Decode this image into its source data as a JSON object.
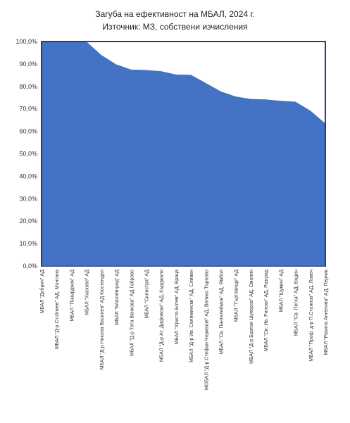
{
  "chart_data": {
    "type": "area",
    "title": "Загуба на ефективност на МБАЛ, 2024 г.",
    "subtitle": "Източник: МЗ, собствени изчисления",
    "ylim": [
      0,
      100
    ],
    "y_ticks": [
      "0,0%",
      "10,0%",
      "20,0%",
      "30,0%",
      "40,0%",
      "50,0%",
      "60,0%",
      "70,0%",
      "80,0%",
      "90,0%",
      "100,0%"
    ],
    "grid": false,
    "colors": {
      "area": "#4472C4",
      "frame": "#1F3E8A"
    },
    "categories": [
      "МБАЛ \"Добрич\" АД",
      "МБАЛ \"Д-р Ст.Илиев\" АД, Монтана",
      "МБАЛ \"Пазарджик\" АД",
      "МБАЛ \"Хасково\" АД",
      "МБАЛ \"Д-р Никола Василев\" АД Кюстендил",
      "МБАЛ \"Благоевград\" АД",
      "МБАЛ \"Д-р Тота Венкова\" АД Габрово",
      "МБАЛ \"Силистра\" АД",
      "МБАЛ \"Д-р Ат. Дафовски\" АД, Кърджали",
      "МБАЛ \"Христо Ботев\" АД, Враца",
      "МБАЛ \"Д-р Ив. Селимински\" АД, Сливен",
      "МОБАЛ \"Д-р Стефан Черкезов\" АД, Велико Търново",
      "МБАЛ \"Св. Пантелеймон\" АД, Ямбол",
      "МБАЛ \"Търговище\" АД",
      "МБАЛ \"Д-р Братан Шукеров\" АД, Смолян",
      "МБАЛ \"Св. Ив. Рилски\" АД, Разград",
      "МБАЛ \"Шумен\" АД",
      "МБАЛ \"Св. Петка\" АД, Видин",
      "МБАЛ \"Проф. д-р П.Стоянов\" АД, Ловеч",
      "МБАЛ \"Рахила Ангелова\" АД, Перник"
    ],
    "series": [
      {
        "values": [
          100,
          100,
          100,
          100,
          94,
          89.8,
          87.5,
          87.3,
          86.8,
          85.3,
          85.2,
          81.5,
          77.8,
          75.5,
          74.4,
          74.2,
          73.6,
          73.2,
          69.2,
          63.5
        ]
      }
    ]
  }
}
